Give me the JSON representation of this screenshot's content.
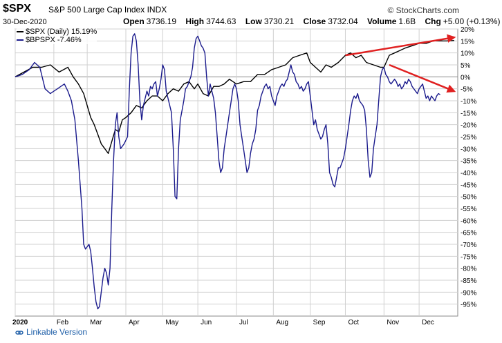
{
  "header": {
    "symbol": "$SPX",
    "name": "S&P 500 Large Cap Index",
    "exchange": "INDX",
    "date": "30-Dec-2020",
    "brand": "© StockCharts.com",
    "open_label": "Open",
    "open": "3736.19",
    "high_label": "High",
    "high": "3744.63",
    "low_label": "Low",
    "low": "3730.21",
    "close_label": "Close",
    "close": "3732.04",
    "volume_label": "Volume",
    "volume": "1.6B",
    "chg_label": "Chg",
    "chg": "+5.00 (+0.13%)"
  },
  "legend": {
    "spx": "$SPX (Daily) 15.19%",
    "bpspx": "$BPSPX -7.46%"
  },
  "footer": {
    "link": "Linkable Version"
  },
  "colors": {
    "spx": "#000000",
    "bpspx": "#1a1a8c",
    "trend": "#e02020",
    "grid": "#d0d0d0"
  },
  "chart_data": {
    "type": "line",
    "y_unit": "%",
    "ylim": [
      -100,
      20
    ],
    "y_ticks": [
      20,
      15,
      10,
      5,
      0,
      -5,
      -10,
      -15,
      -20,
      -25,
      -30,
      -35,
      -40,
      -45,
      -50,
      -55,
      -60,
      -65,
      -70,
      -75,
      -80,
      -85,
      -90,
      -95
    ],
    "y_tick_labels": [
      "20%",
      "15%",
      "10%",
      "5%",
      "0%",
      "-5%",
      "-10%",
      "-15%",
      "-20%",
      "-25%",
      "-30%",
      "-35%",
      "-40%",
      "-45%",
      "-50%",
      "-55%",
      "-60%",
      "-65%",
      "-70%",
      "-75%",
      "-80%",
      "-85%",
      "-90%",
      "-95%"
    ],
    "x_labels": [
      {
        "label": "2020",
        "t": 0
      },
      {
        "label": "Feb",
        "t": 22
      },
      {
        "label": "Mar",
        "t": 41
      },
      {
        "label": "Apr",
        "t": 63
      },
      {
        "label": "May",
        "t": 84
      },
      {
        "label": "Jun",
        "t": 104
      },
      {
        "label": "Jul",
        "t": 126
      },
      {
        "label": "Aug",
        "t": 147
      },
      {
        "label": "Sep",
        "t": 168
      },
      {
        "label": "Oct",
        "t": 188
      },
      {
        "label": "Nov",
        "t": 210
      },
      {
        "label": "Dec",
        "t": 230
      }
    ],
    "x_range": [
      0,
      252
    ],
    "grid": true,
    "legend_position": "top-left",
    "series": [
      {
        "name": "$SPX (Daily) 15.19%",
        "points": [
          [
            0,
            0
          ],
          [
            5,
            2
          ],
          [
            10,
            4
          ],
          [
            15,
            4
          ],
          [
            20,
            5
          ],
          [
            25,
            2
          ],
          [
            30,
            4
          ],
          [
            33,
            0
          ],
          [
            36,
            -3
          ],
          [
            39,
            -7
          ],
          [
            41,
            -12
          ],
          [
            43,
            -17
          ],
          [
            45,
            -20
          ],
          [
            47,
            -24
          ],
          [
            49,
            -28
          ],
          [
            51,
            -30
          ],
          [
            53,
            -32
          ],
          [
            55,
            -27
          ],
          [
            57,
            -22
          ],
          [
            59,
            -23
          ],
          [
            61,
            -18
          ],
          [
            63,
            -17
          ],
          [
            66,
            -15
          ],
          [
            69,
            -12
          ],
          [
            72,
            -13
          ],
          [
            75,
            -10
          ],
          [
            78,
            -8
          ],
          [
            81,
            -8
          ],
          [
            84,
            -10
          ],
          [
            87,
            -7
          ],
          [
            90,
            -5
          ],
          [
            93,
            -6
          ],
          [
            96,
            -3
          ],
          [
            99,
            -2
          ],
          [
            102,
            -5
          ],
          [
            104,
            -3
          ],
          [
            107,
            -7
          ],
          [
            110,
            -8
          ],
          [
            113,
            -4
          ],
          [
            116,
            -4
          ],
          [
            119,
            -3
          ],
          [
            122,
            -1
          ],
          [
            126,
            -3
          ],
          [
            130,
            -2
          ],
          [
            134,
            -2
          ],
          [
            138,
            1
          ],
          [
            142,
            1
          ],
          [
            146,
            3
          ],
          [
            150,
            4
          ],
          [
            154,
            5
          ],
          [
            158,
            8
          ],
          [
            162,
            9
          ],
          [
            166,
            10
          ],
          [
            168,
            6
          ],
          [
            171,
            4
          ],
          [
            174,
            2
          ],
          [
            177,
            5
          ],
          [
            180,
            4
          ],
          [
            184,
            6
          ],
          [
            188,
            9
          ],
          [
            191,
            10
          ],
          [
            194,
            8
          ],
          [
            197,
            9
          ],
          [
            200,
            6
          ],
          [
            204,
            5
          ],
          [
            208,
            4
          ],
          [
            210,
            4
          ],
          [
            213,
            9
          ],
          [
            216,
            10
          ],
          [
            219,
            11
          ],
          [
            222,
            12
          ],
          [
            226,
            13
          ],
          [
            230,
            14
          ],
          [
            234,
            14
          ],
          [
            238,
            15
          ],
          [
            242,
            15
          ],
          [
            246,
            15
          ],
          [
            250,
            15.19
          ]
        ]
      },
      {
        "name": "$BPSPX -7.46%",
        "points": [
          [
            0,
            0
          ],
          [
            4,
            1
          ],
          [
            8,
            3
          ],
          [
            11,
            6
          ],
          [
            14,
            4
          ],
          [
            17,
            -5
          ],
          [
            20,
            -7
          ],
          [
            22,
            -6
          ],
          [
            24,
            -5
          ],
          [
            26,
            -4
          ],
          [
            28,
            -3
          ],
          [
            30,
            -6
          ],
          [
            32,
            -10
          ],
          [
            34,
            -18
          ],
          [
            36,
            -35
          ],
          [
            38,
            -55
          ],
          [
            39,
            -70
          ],
          [
            40,
            -72
          ],
          [
            41,
            -71
          ],
          [
            42,
            -70
          ],
          [
            43,
            -73
          ],
          [
            44,
            -80
          ],
          [
            45,
            -88
          ],
          [
            46,
            -94
          ],
          [
            47,
            -97
          ],
          [
            48,
            -96
          ],
          [
            49,
            -90
          ],
          [
            50,
            -84
          ],
          [
            51,
            -80
          ],
          [
            52,
            -82
          ],
          [
            53,
            -87
          ],
          [
            54,
            -80
          ],
          [
            55,
            -55
          ],
          [
            56,
            -35
          ],
          [
            57,
            -20
          ],
          [
            58,
            -15
          ],
          [
            59,
            -25
          ],
          [
            60,
            -30
          ],
          [
            62,
            -28
          ],
          [
            64,
            -25
          ],
          [
            65,
            -5
          ],
          [
            66,
            10
          ],
          [
            67,
            17
          ],
          [
            68,
            18
          ],
          [
            69,
            15
          ],
          [
            70,
            5
          ],
          [
            71,
            -10
          ],
          [
            72,
            -18
          ],
          [
            73,
            -12
          ],
          [
            74,
            -9
          ],
          [
            75,
            -6
          ],
          [
            76,
            -8
          ],
          [
            77,
            -4
          ],
          [
            78,
            -5
          ],
          [
            79,
            -3
          ],
          [
            80,
            -2
          ],
          [
            81,
            -8
          ],
          [
            82,
            -5
          ],
          [
            83,
            -1
          ],
          [
            84,
            5
          ],
          [
            85,
            3
          ],
          [
            86,
            -6
          ],
          [
            87,
            -9
          ],
          [
            88,
            -12
          ],
          [
            89,
            -15
          ],
          [
            90,
            -30
          ],
          [
            91,
            -50
          ],
          [
            92,
            -51
          ],
          [
            93,
            -30
          ],
          [
            94,
            -18
          ],
          [
            95,
            -14
          ],
          [
            96,
            -10
          ],
          [
            97,
            -5
          ],
          [
            98,
            -4
          ],
          [
            99,
            -2
          ],
          [
            100,
            0
          ],
          [
            101,
            4
          ],
          [
            102,
            12
          ],
          [
            103,
            16
          ],
          [
            104,
            17
          ],
          [
            105,
            15
          ],
          [
            106,
            13
          ],
          [
            107,
            12
          ],
          [
            108,
            10
          ],
          [
            109,
            0
          ],
          [
            110,
            -8
          ],
          [
            111,
            -3
          ],
          [
            112,
            -6
          ],
          [
            113,
            -9
          ],
          [
            114,
            -15
          ],
          [
            115,
            -25
          ],
          [
            116,
            -35
          ],
          [
            117,
            -40
          ],
          [
            118,
            -38
          ],
          [
            119,
            -30
          ],
          [
            120,
            -25
          ],
          [
            121,
            -20
          ],
          [
            122,
            -15
          ],
          [
            123,
            -10
          ],
          [
            124,
            -5
          ],
          [
            125,
            -3
          ],
          [
            126,
            -5
          ],
          [
            127,
            -10
          ],
          [
            128,
            -20
          ],
          [
            129,
            -25
          ],
          [
            130,
            -30
          ],
          [
            131,
            -35
          ],
          [
            132,
            -40
          ],
          [
            133,
            -38
          ],
          [
            134,
            -32
          ],
          [
            135,
            -28
          ],
          [
            136,
            -26
          ],
          [
            137,
            -22
          ],
          [
            138,
            -14
          ],
          [
            139,
            -12
          ],
          [
            140,
            -8
          ],
          [
            141,
            -6
          ],
          [
            142,
            -4
          ],
          [
            143,
            -3
          ],
          [
            144,
            -5
          ],
          [
            145,
            -4
          ],
          [
            146,
            -8
          ],
          [
            147,
            -10
          ],
          [
            148,
            -12
          ],
          [
            149,
            -8
          ],
          [
            150,
            -6
          ],
          [
            151,
            -4
          ],
          [
            152,
            -3
          ],
          [
            153,
            -4
          ],
          [
            154,
            -2
          ],
          [
            155,
            -1
          ],
          [
            156,
            2
          ],
          [
            157,
            5
          ],
          [
            158,
            2
          ],
          [
            159,
            1
          ],
          [
            160,
            -2
          ],
          [
            161,
            -3
          ],
          [
            162,
            -5
          ],
          [
            163,
            -4
          ],
          [
            164,
            -6
          ],
          [
            165,
            -5
          ],
          [
            166,
            -3
          ],
          [
            167,
            -2
          ],
          [
            168,
            -8
          ],
          [
            169,
            -14
          ],
          [
            170,
            -20
          ],
          [
            171,
            -18
          ],
          [
            172,
            -22
          ],
          [
            173,
            -24
          ],
          [
            174,
            -26
          ],
          [
            175,
            -25
          ],
          [
            176,
            -22
          ],
          [
            177,
            -20
          ],
          [
            178,
            -28
          ],
          [
            179,
            -40
          ],
          [
            180,
            -42
          ],
          [
            181,
            -45
          ],
          [
            182,
            -46
          ],
          [
            183,
            -42
          ],
          [
            184,
            -38
          ],
          [
            185,
            -38
          ],
          [
            186,
            -36
          ],
          [
            187,
            -34
          ],
          [
            188,
            -30
          ],
          [
            189,
            -25
          ],
          [
            190,
            -20
          ],
          [
            191,
            -14
          ],
          [
            192,
            -10
          ],
          [
            193,
            -8
          ],
          [
            194,
            -9
          ],
          [
            195,
            -7
          ],
          [
            196,
            -10
          ],
          [
            197,
            -11
          ],
          [
            198,
            -12
          ],
          [
            199,
            -14
          ],
          [
            200,
            -22
          ],
          [
            201,
            -35
          ],
          [
            202,
            -42
          ],
          [
            203,
            -40
          ],
          [
            204,
            -30
          ],
          [
            205,
            -25
          ],
          [
            206,
            -20
          ],
          [
            207,
            -10
          ],
          [
            208,
            0
          ],
          [
            209,
            3
          ],
          [
            210,
            4
          ],
          [
            211,
            1
          ],
          [
            212,
            0
          ],
          [
            213,
            -2
          ],
          [
            214,
            -3
          ],
          [
            215,
            -2
          ],
          [
            216,
            -1
          ],
          [
            217,
            -2
          ],
          [
            218,
            -4
          ],
          [
            219,
            -3
          ],
          [
            220,
            -5
          ],
          [
            221,
            -4
          ],
          [
            222,
            -2
          ],
          [
            223,
            -3
          ],
          [
            224,
            -1
          ],
          [
            225,
            -2
          ],
          [
            226,
            -4
          ],
          [
            227,
            -5
          ],
          [
            228,
            -6
          ],
          [
            229,
            -7
          ],
          [
            230,
            -5
          ],
          [
            231,
            -4
          ],
          [
            232,
            -3
          ],
          [
            233,
            -6
          ],
          [
            234,
            -9
          ],
          [
            235,
            -8
          ],
          [
            236,
            -10
          ],
          [
            237,
            -8
          ],
          [
            238,
            -9
          ],
          [
            239,
            -10
          ],
          [
            240,
            -8
          ],
          [
            241,
            -7
          ],
          [
            242,
            -7.46
          ]
        ]
      }
    ],
    "annotations": [
      {
        "type": "arrow",
        "color": "#e02020",
        "from": [
          188,
          9
        ],
        "to": [
          250,
          16.5
        ]
      },
      {
        "type": "arrow",
        "color": "#e02020",
        "from": [
          213,
          5
        ],
        "to": [
          250,
          -6
        ]
      }
    ]
  }
}
